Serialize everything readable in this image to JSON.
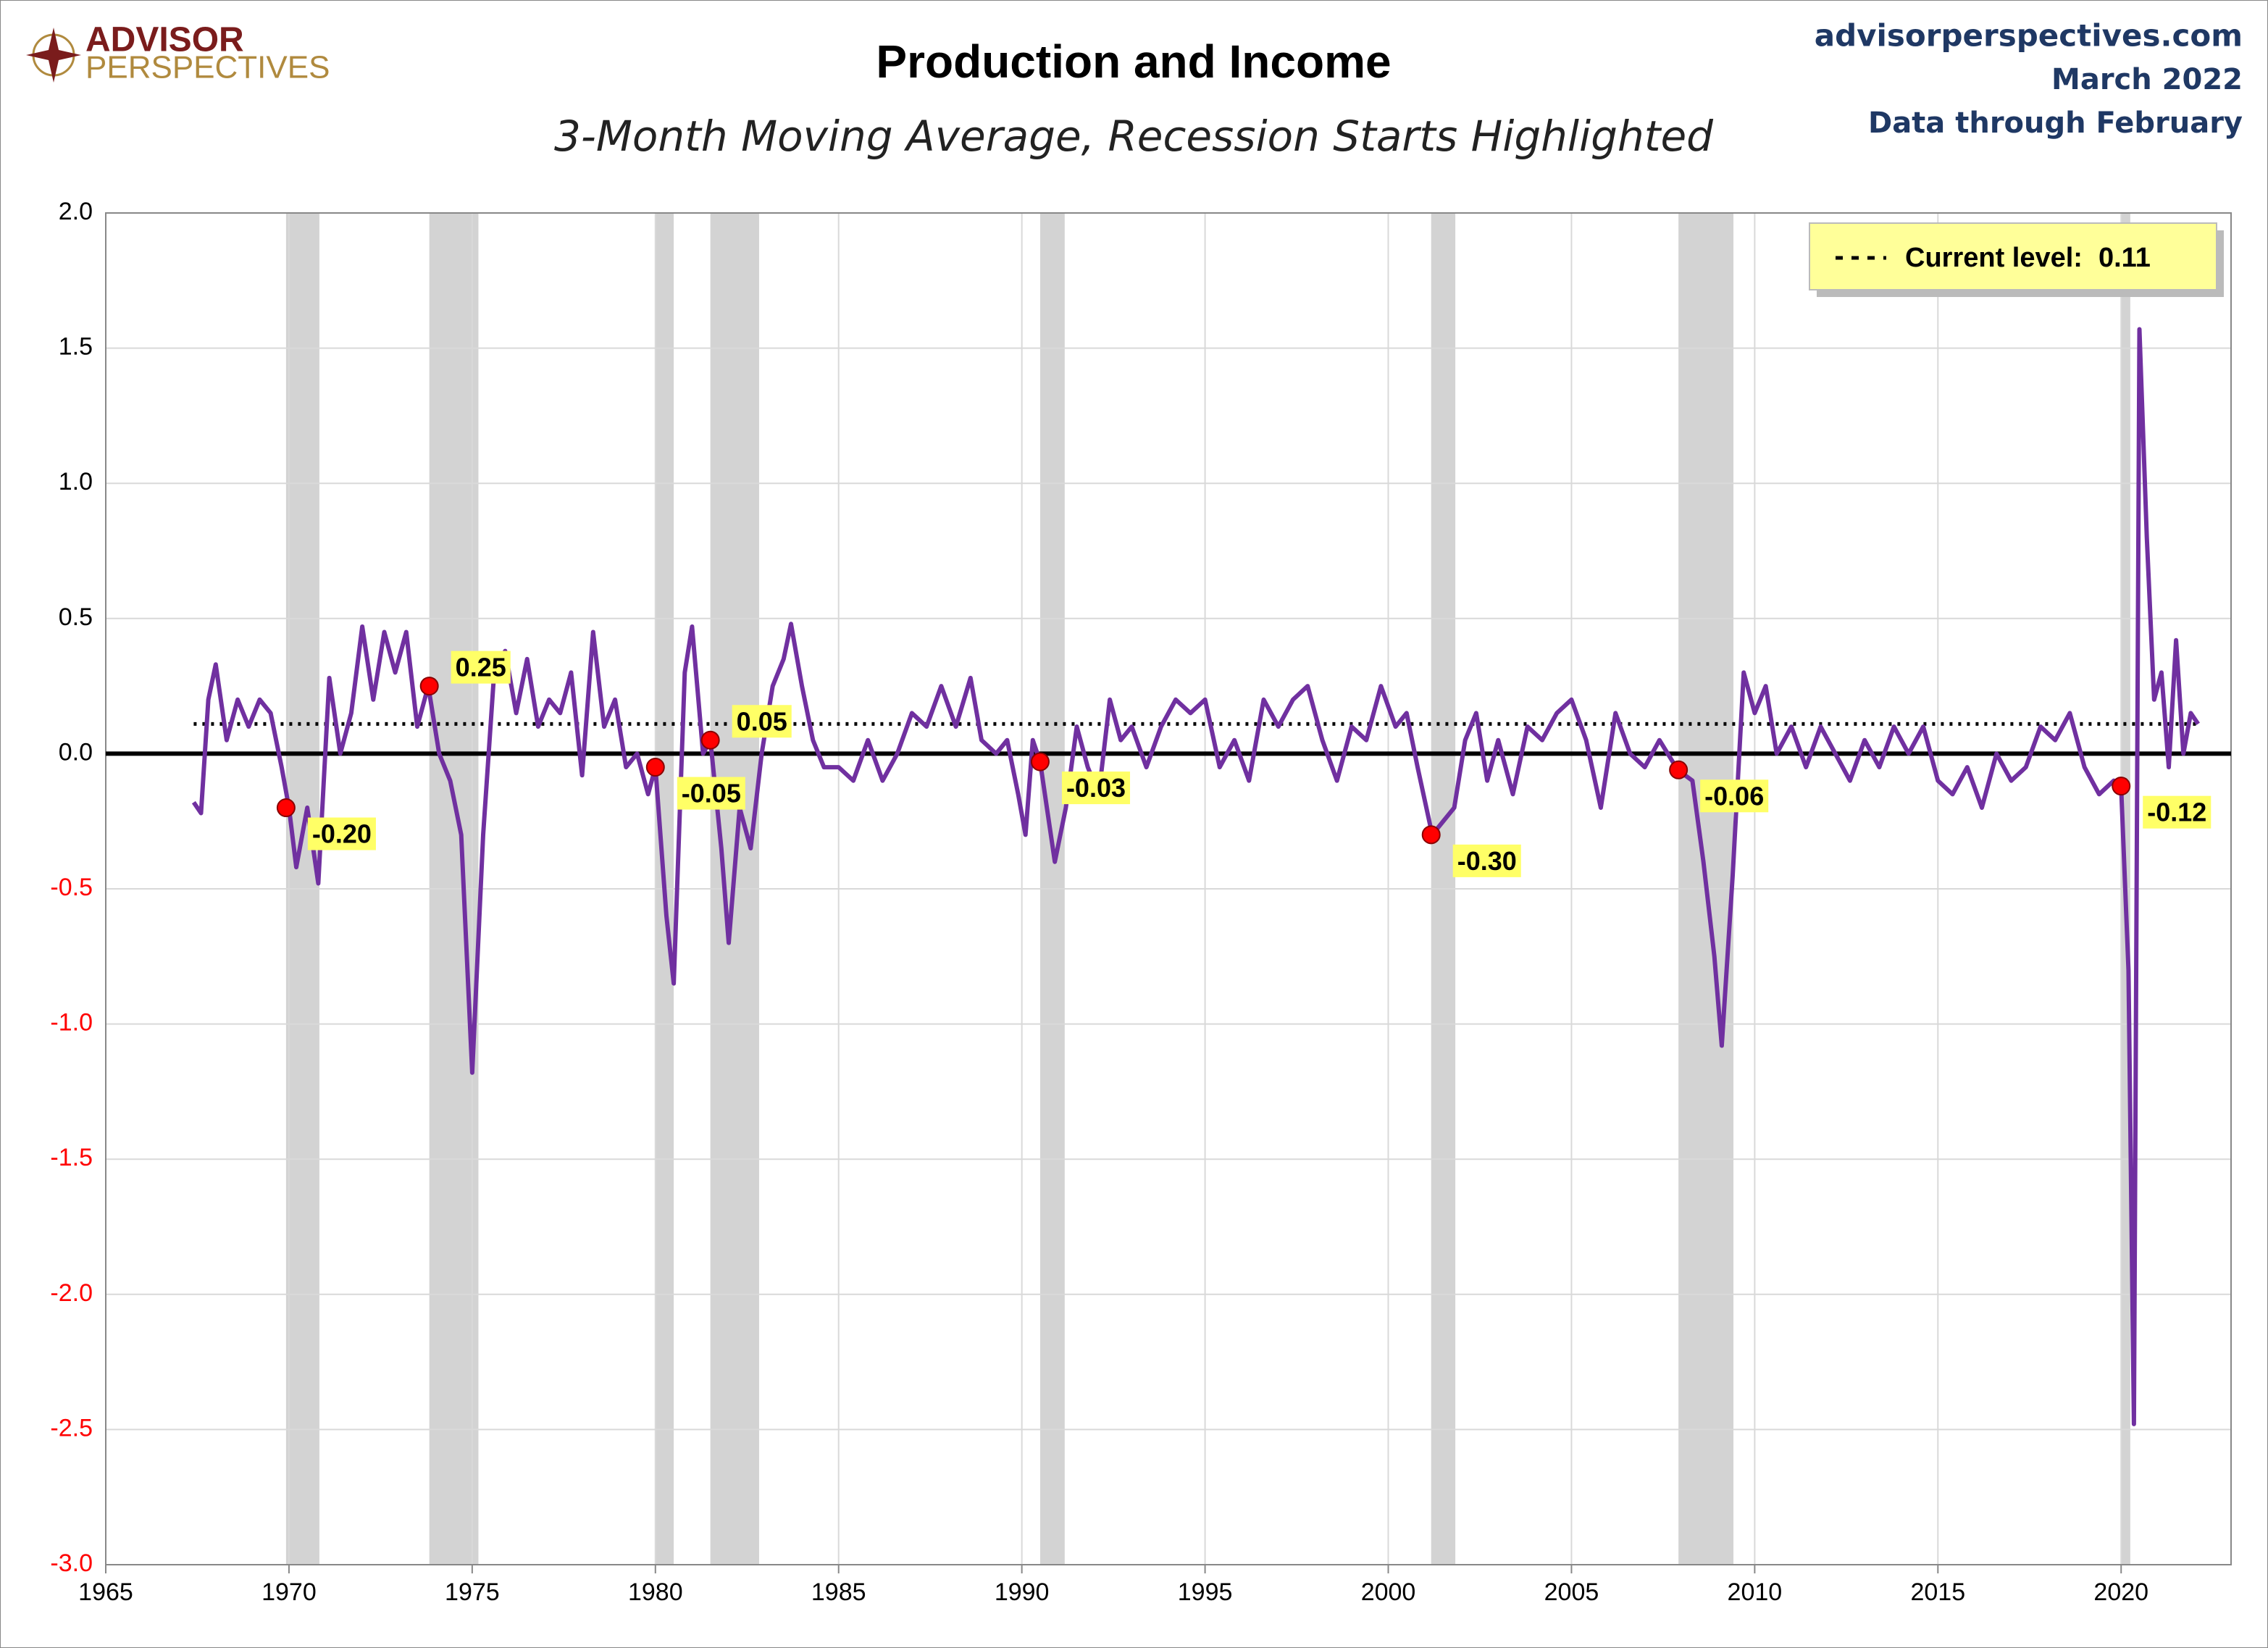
{
  "chart_data": {
    "type": "line",
    "logo": {
      "top": "ADVISOR",
      "bottom": "PERSPECTIVES"
    },
    "title": "Production and Income",
    "subtitle": "3-Month Moving Average, Recession Starts Highlighted",
    "source": [
      "advisorperspectives.com",
      "March 2022",
      "Data through February"
    ],
    "xlim": [
      1965,
      2023
    ],
    "xticks": [
      1965,
      1970,
      1975,
      1980,
      1985,
      1990,
      1995,
      2000,
      2005,
      2010,
      2015,
      2020
    ],
    "ylim": [
      -3,
      2
    ],
    "yticks": [
      {
        "value": -3,
        "label": "-3.0"
      },
      -2.5,
      {
        "value": -2,
        "label": "-2.0"
      },
      -1.5,
      {
        "value": -1,
        "label": "-1.0"
      },
      -0.5,
      {
        "value": 0,
        "label": "0.0"
      },
      0.5,
      {
        "value": 1,
        "label": "1.0"
      },
      1.5,
      {
        "value": 2,
        "label": "2.0"
      }
    ],
    "negative_tick_color": "#ff0000",
    "grid": true,
    "legend": "upper right",
    "recessions": [
      [
        1969.92,
        1970.83
      ],
      [
        1973.83,
        1975.17
      ],
      [
        1980.0,
        1980.5
      ],
      [
        1981.5,
        1982.83
      ],
      [
        1990.5,
        1991.17
      ],
      [
        2001.17,
        2001.83
      ],
      [
        2007.92,
        2009.42
      ],
      [
        2020.0,
        2020.25
      ]
    ],
    "recession_color": "#d3d3d3",
    "x": [
      1967.4,
      1967.6,
      1967.8,
      1968.0,
      1968.3,
      1968.6,
      1968.9,
      1969.2,
      1969.5,
      1969.8,
      1970.0,
      1970.2,
      1970.5,
      1970.8,
      1971.1,
      1971.4,
      1971.7,
      1972.0,
      1972.3,
      1972.6,
      1972.9,
      1973.2,
      1973.5,
      1973.8,
      1974.1,
      1974.4,
      1974.7,
      1975.0,
      1975.3,
      1975.6,
      1975.9,
      1976.2,
      1976.5,
      1976.8,
      1977.1,
      1977.4,
      1977.7,
      1978.0,
      1978.3,
      1978.6,
      1978.9,
      1979.2,
      1979.5,
      1979.8,
      1980.0,
      1980.3,
      1980.5,
      1980.8,
      1981.0,
      1981.3,
      1981.5,
      1981.8,
      1982.0,
      1982.3,
      1982.6,
      1982.9,
      1983.2,
      1983.5,
      1983.7,
      1984.0,
      1984.3,
      1984.6,
      1985.0,
      1985.4,
      1985.8,
      1986.2,
      1986.6,
      1987.0,
      1987.4,
      1987.8,
      1988.2,
      1988.6,
      1988.9,
      1989.3,
      1989.6,
      1989.9,
      1990.1,
      1990.3,
      1990.5,
      1990.9,
      1991.2,
      1991.5,
      1991.8,
      1992.1,
      1992.4,
      1992.7,
      1993.0,
      1993.4,
      1993.8,
      1994.2,
      1994.6,
      1995.0,
      1995.4,
      1995.8,
      1996.2,
      1996.6,
      1997.0,
      1997.4,
      1997.8,
      1998.2,
      1998.6,
      1999.0,
      1999.4,
      1999.8,
      2000.2,
      2000.5,
      2000.8,
      2001.2,
      2001.5,
      2001.8,
      2002.1,
      2002.4,
      2002.7,
      2003.0,
      2003.4,
      2003.8,
      2004.2,
      2004.6,
      2005.0,
      2005.4,
      2005.8,
      2006.2,
      2006.6,
      2007.0,
      2007.4,
      2007.9,
      2008.3,
      2008.6,
      2008.9,
      2009.1,
      2009.4,
      2009.7,
      2010.0,
      2010.3,
      2010.6,
      2011.0,
      2011.4,
      2011.8,
      2012.2,
      2012.6,
      2013.0,
      2013.4,
      2013.8,
      2014.2,
      2014.6,
      2015.0,
      2015.4,
      2015.8,
      2016.2,
      2016.6,
      2017.0,
      2017.4,
      2017.8,
      2018.2,
      2018.6,
      2019.0,
      2019.4,
      2019.8,
      2020.0,
      2020.2,
      2020.35,
      2020.5,
      2020.7,
      2020.9,
      2021.1,
      2021.3,
      2021.5,
      2021.7,
      2021.9,
      2022.1
    ],
    "series": [
      {
        "color": "#7030a0",
        "values": [
          -0.18,
          -0.22,
          0.2,
          0.33,
          0.05,
          0.2,
          0.1,
          0.2,
          0.15,
          -0.05,
          -0.2,
          -0.42,
          -0.2,
          -0.48,
          0.28,
          0.0,
          0.15,
          0.47,
          0.2,
          0.45,
          0.3,
          0.45,
          0.1,
          0.25,
          0.0,
          -0.1,
          -0.3,
          -1.18,
          -0.3,
          0.3,
          0.38,
          0.15,
          0.35,
          0.1,
          0.2,
          0.15,
          0.3,
          -0.08,
          0.45,
          0.1,
          0.2,
          -0.05,
          0.0,
          -0.15,
          -0.05,
          -0.6,
          -0.85,
          0.3,
          0.47,
          0.0,
          0.05,
          -0.35,
          -0.7,
          -0.2,
          -0.35,
          0.0,
          0.25,
          0.35,
          0.48,
          0.25,
          0.05,
          -0.05,
          -0.05,
          -0.1,
          0.05,
          -0.1,
          0.0,
          0.15,
          0.1,
          0.25,
          0.1,
          0.28,
          0.05,
          0.0,
          0.05,
          -0.15,
          -0.3,
          0.05,
          -0.03,
          -0.4,
          -0.2,
          0.1,
          -0.05,
          -0.15,
          0.2,
          0.05,
          0.1,
          -0.05,
          0.1,
          0.2,
          0.15,
          0.2,
          -0.05,
          0.05,
          -0.1,
          0.2,
          0.1,
          0.2,
          0.25,
          0.05,
          -0.1,
          0.1,
          0.05,
          0.25,
          0.1,
          0.15,
          -0.05,
          -0.3,
          -0.25,
          -0.2,
          0.05,
          0.15,
          -0.1,
          0.05,
          -0.15,
          0.1,
          0.05,
          0.15,
          0.2,
          0.05,
          -0.2,
          0.15,
          0.0,
          -0.05,
          0.05,
          -0.06,
          -0.1,
          -0.4,
          -0.75,
          -1.08,
          -0.45,
          0.3,
          0.15,
          0.25,
          0.0,
          0.1,
          -0.05,
          0.1,
          0.0,
          -0.1,
          0.05,
          -0.05,
          0.1,
          0.0,
          0.1,
          -0.1,
          -0.15,
          -0.05,
          -0.2,
          0.0,
          -0.1,
          -0.05,
          0.1,
          0.05,
          0.15,
          -0.05,
          -0.15,
          -0.1,
          -0.12,
          -0.8,
          -2.48,
          1.57,
          0.8,
          0.2,
          0.3,
          -0.05,
          0.42,
          0.0,
          0.15,
          0.11
        ]
      }
    ],
    "recession_starts": {
      "color": "#ff0000",
      "label_color": "#ffff66",
      "x": [
        1969.92,
        1973.83,
        1980.0,
        1981.5,
        1990.5,
        2001.17,
        2007.92,
        2020.0
      ],
      "values": [
        -0.2,
        0.25,
        -0.05,
        0.05,
        -0.03,
        -0.3,
        -0.06,
        -0.12
      ],
      "value_labels": [
        "-0.20",
        "0.25",
        "-0.05",
        "0.05",
        "-0.03",
        "-0.30",
        "-0.06",
        "-0.12"
      ]
    },
    "current_level": {
      "label": "Current level:",
      "value": 0.11,
      "legend_color": "#ffff99"
    }
  }
}
